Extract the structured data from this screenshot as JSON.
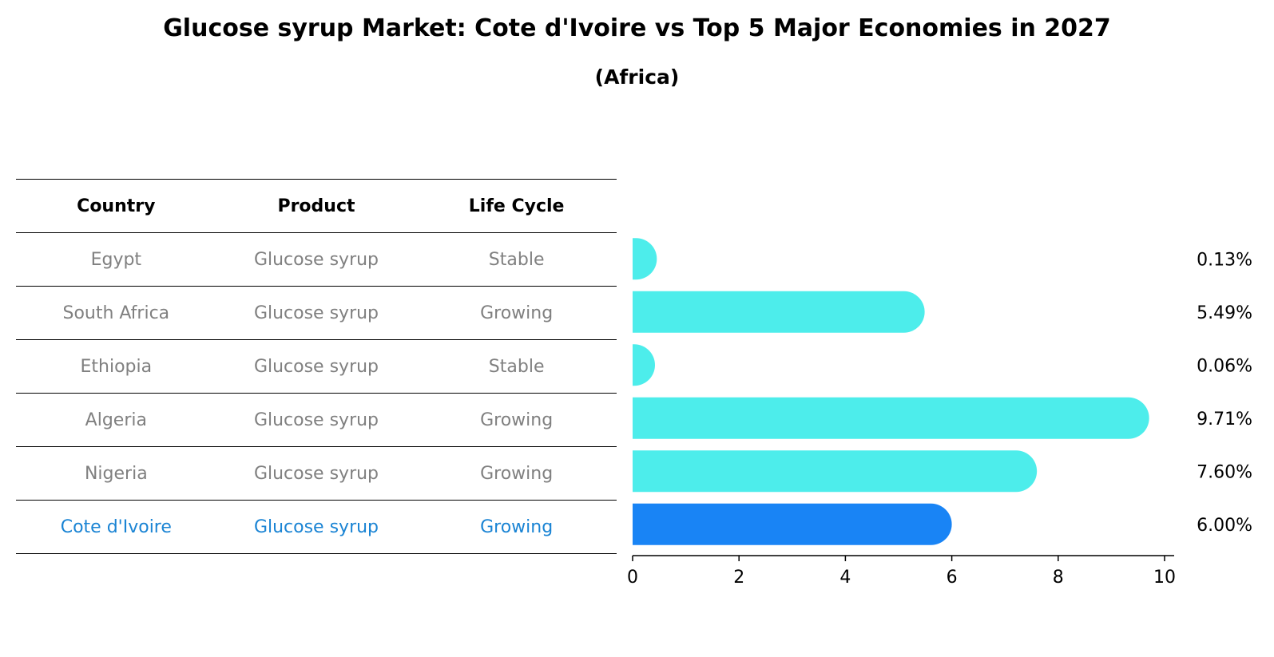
{
  "title": "Glucose syrup Market: Cote d'Ivoire vs Top 5 Major Economies in 2027",
  "subtitle": "(Africa)",
  "table": {
    "headers": [
      "Country",
      "Product",
      "Life Cycle"
    ],
    "rows": [
      {
        "country": "Egypt",
        "product": "Glucose syrup",
        "life_cycle": "Stable"
      },
      {
        "country": "South Africa",
        "product": "Glucose syrup",
        "life_cycle": "Growing"
      },
      {
        "country": "Ethiopia",
        "product": "Glucose syrup",
        "life_cycle": "Stable"
      },
      {
        "country": "Algeria",
        "product": "Glucose syrup",
        "life_cycle": "Growing"
      },
      {
        "country": "Nigeria",
        "product": "Glucose syrup",
        "life_cycle": "Growing"
      },
      {
        "country": "Cote d'Ivoire",
        "product": "Glucose syrup",
        "life_cycle": "Growing"
      }
    ]
  },
  "colors": {
    "bar": "#4dedeb",
    "highlight_bar": "#1984f5",
    "highlight_text": "#1a84d4",
    "row_text": "#808080"
  },
  "chart_data": {
    "type": "bar",
    "orientation": "horizontal",
    "categories": [
      "Egypt",
      "South Africa",
      "Ethiopia",
      "Algeria",
      "Nigeria",
      "Cote d'Ivoire"
    ],
    "values": [
      0.13,
      5.49,
      0.06,
      9.71,
      7.6,
      6.0
    ],
    "value_labels": [
      "0.13%",
      "5.49%",
      "0.06%",
      "9.71%",
      "7.60%",
      "6.00%"
    ],
    "highlight": "Cote d'Ivoire",
    "xlim": [
      0,
      10.2
    ],
    "xticks": [
      0,
      2,
      4,
      6,
      8,
      10
    ],
    "grid": false
  }
}
